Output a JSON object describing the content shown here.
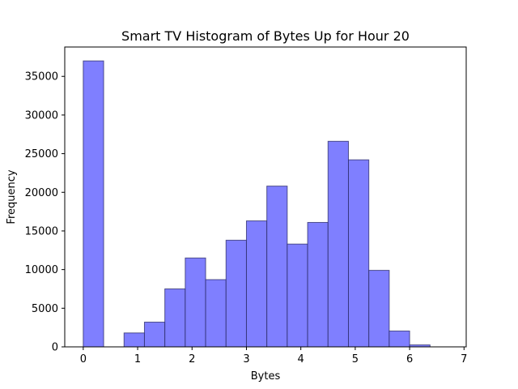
{
  "chart_data": {
    "type": "bar",
    "title": "Smart TV Histogram of Bytes Up for Hour 20",
    "xlabel": "Bytes",
    "ylabel": "Frequency",
    "xlim": [
      -0.34,
      7.04
    ],
    "ylim": [
      0,
      38800
    ],
    "xticks": [
      0,
      1,
      2,
      3,
      4,
      5,
      6,
      7
    ],
    "yticks": [
      0,
      5000,
      10000,
      15000,
      20000,
      25000,
      30000,
      35000
    ],
    "bin_edges": [
      0.0,
      0.375,
      0.75,
      1.125,
      1.5,
      1.875,
      2.25,
      2.625,
      3.0,
      3.375,
      3.75,
      4.125,
      4.5,
      4.875,
      5.25,
      5.625,
      6.0,
      6.375,
      6.75
    ],
    "values": [
      37000,
      0,
      1800,
      3200,
      7500,
      11500,
      8700,
      13800,
      16300,
      20800,
      13300,
      16100,
      26600,
      24200,
      9900,
      2050,
      250,
      0
    ],
    "grid": false,
    "color": "#7f7fff",
    "edgecolor": "#2a2a66"
  }
}
